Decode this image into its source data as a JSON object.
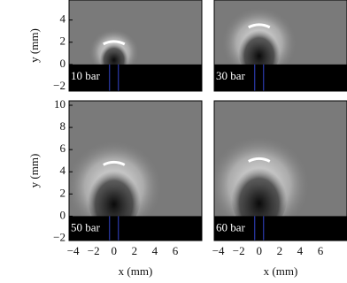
{
  "chart_data": [
    {
      "type": "image",
      "annotation": "10 bar",
      "ylabel": "y (mm)",
      "ylim": [
        -2.4,
        5.8
      ],
      "yticks": [
        {
          "value": -2,
          "label": "−2"
        },
        0,
        2,
        4
      ],
      "xlim": [
        -4.4,
        8.6
      ]
    },
    {
      "type": "image",
      "annotation": "30 bar",
      "ylim": [
        -2.4,
        5.8
      ],
      "xlim": [
        -4.4,
        8.6
      ]
    },
    {
      "type": "image",
      "annotation": "50 bar",
      "ylabel": "y (mm)",
      "xlabel": "x (mm)",
      "ylim": [
        -2.2,
        10.4
      ],
      "yticks": [
        {
          "value": -2,
          "label": "−2"
        },
        0,
        2,
        4,
        6,
        8,
        10
      ],
      "xlim": [
        -4.4,
        8.6
      ],
      "xticks": [
        {
          "value": -4,
          "label": "−4"
        },
        {
          "value": -2,
          "label": "−2"
        },
        0,
        2,
        4,
        6
      ]
    },
    {
      "type": "image",
      "annotation": "60 bar",
      "xlabel": "x (mm)",
      "ylim": [
        -2.2,
        10.4
      ],
      "xlim": [
        -4.4,
        8.6
      ],
      "xticks": [
        {
          "value": -4,
          "label": "−4"
        },
        {
          "value": -2,
          "label": "−2"
        },
        0,
        2,
        4,
        6
      ]
    }
  ]
}
